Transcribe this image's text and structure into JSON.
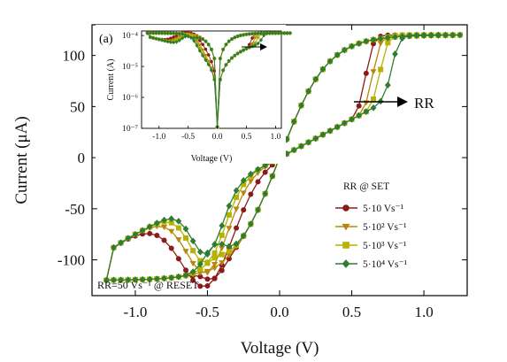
{
  "chart_data": {
    "type": "line",
    "panel_label": "(a)",
    "xlabel": "Voltage (V)",
    "ylabel": "Current (μA)",
    "xlim": [
      -1.3,
      1.3
    ],
    "ylim": [
      -135,
      130
    ],
    "xticks": [
      -1.0,
      -0.5,
      0.0,
      0.5,
      1.0
    ],
    "xtick_labels": [
      "-1.0",
      "-0.5",
      "0.0",
      "0.5",
      "1.0"
    ],
    "yticks": [
      -100,
      -50,
      0,
      50,
      100
    ],
    "ytick_labels": [
      "-100",
      "-50",
      "0",
      "50",
      "100"
    ],
    "legend_title": "RR @ SET",
    "reset_annotation": "RR=50 Vs⁻¹ @ RESET",
    "rr_label": "RR",
    "series": [
      {
        "name": "5·10 Vs⁻¹",
        "color": "#8b1a1a",
        "marker": "circle",
        "set_v": 0.6,
        "reset_peak": -118,
        "bump_h": -88,
        "bump_w": 0.25,
        "a": 180
      },
      {
        "name": "5·10² Vs⁻¹",
        "color": "#b8860b",
        "marker": "triangle-down",
        "set_v": 0.65,
        "reset_peak": -108,
        "bump_h": -75,
        "bump_w": 0.2,
        "a": 170
      },
      {
        "name": "5·10³ Vs⁻¹",
        "color": "#b5b200",
        "marker": "square",
        "set_v": 0.7,
        "reset_peak": -98,
        "bump_h": -65,
        "bump_w": 0.17,
        "a": 160
      },
      {
        "name": "5·10⁴ Vs⁻¹",
        "color": "#2e7d32",
        "marker": "diamond",
        "set_v": 0.78,
        "reset_peak": -85,
        "bump_h": -57,
        "bump_w": 0.15,
        "a": 150
      }
    ],
    "inset": {
      "xlabel": "Voltage (V)",
      "ylabel": "Current (A)",
      "xlim": [
        -1.3,
        1.1
      ],
      "xticks": [
        -1.0,
        -0.5,
        0.0,
        0.5,
        1.0
      ],
      "xtick_labels": [
        "-1.0",
        "-0.5",
        "0.0",
        "0.5",
        "1.0"
      ],
      "ylog": true,
      "ylim": [
        1e-07,
        0.00014
      ],
      "yticks": [
        1e-07,
        1e-06,
        1e-05,
        0.0001
      ],
      "ytick_labels": [
        "10⁻⁷",
        "10⁻⁶",
        "10⁻⁵",
        "10⁻⁴"
      ]
    }
  }
}
